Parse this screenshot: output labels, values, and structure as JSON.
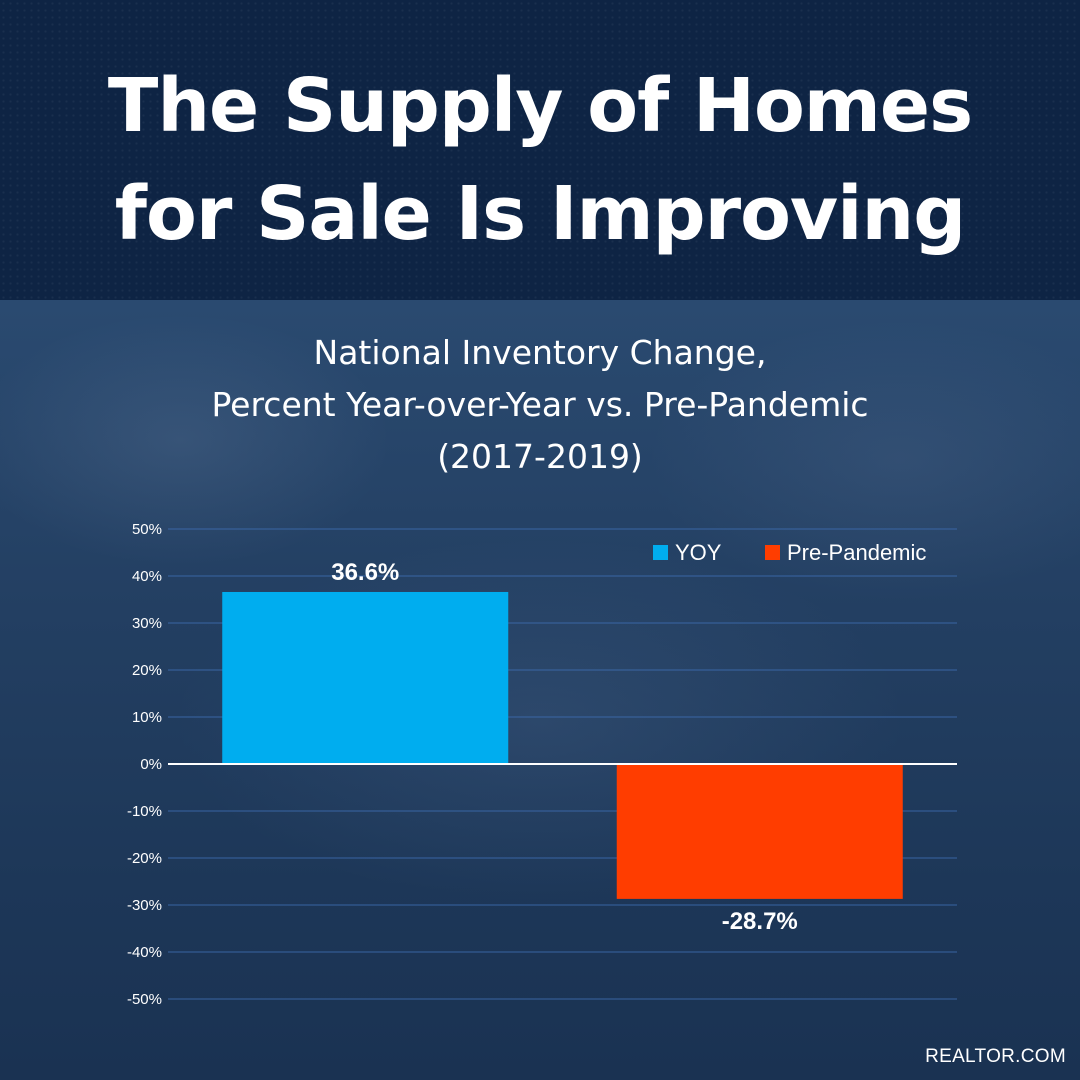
{
  "header": {
    "title_line1": "The Supply of Homes",
    "title_line2": "for Sale Is Improving"
  },
  "chart_data": {
    "type": "bar",
    "title_lines": [
      "National Inventory Change,",
      "Percent Year-over-Year vs. Pre-Pandemic",
      "(2017-2019)"
    ],
    "categories": [
      "YOY",
      "Pre-Pandemic"
    ],
    "values": [
      36.6,
      -28.7
    ],
    "data_labels": [
      "36.6%",
      "-28.7%"
    ],
    "colors": [
      "#00adef",
      "#ff3d00"
    ],
    "ylim": [
      -50,
      50
    ],
    "yticks": [
      50,
      40,
      30,
      20,
      10,
      0,
      -10,
      -20,
      -30,
      -40,
      -50
    ],
    "ytick_labels": [
      "50%",
      "40%",
      "30%",
      "20%",
      "10%",
      "0%",
      "-10%",
      "-20%",
      "-30%",
      "-40%",
      "-50%"
    ],
    "legend": [
      {
        "name": "YOY",
        "color": "#00adef"
      },
      {
        "name": "Pre-Pandemic",
        "color": "#ff3d00"
      }
    ],
    "legend_position": "top-right",
    "grid": true,
    "xlabel": "",
    "ylabel": ""
  },
  "footer": {
    "source": "REALTOR.COM"
  }
}
